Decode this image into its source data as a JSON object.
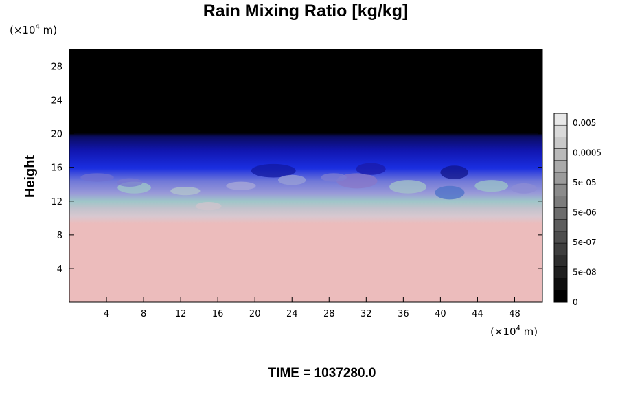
{
  "chart_data": {
    "type": "heatmap",
    "title": "Rain Mixing Ratio [kg/kg]",
    "ylabel": "Height",
    "xunit": "(×10",
    "xunit_exp": "4",
    "xunit_tail": " m)",
    "yunit": "(×10",
    "yunit_exp": "4",
    "yunit_tail": " m)",
    "xlim": [
      0,
      51
    ],
    "ylim": [
      0,
      30
    ],
    "xticks": [
      4,
      8,
      12,
      16,
      20,
      24,
      28,
      32,
      36,
      40,
      44,
      48
    ],
    "yticks": [
      4,
      8,
      12,
      16,
      20,
      24,
      28
    ],
    "layers": [
      {
        "name": "near-zero top",
        "y_from": 19.8,
        "y_to": 30,
        "color": "#000000"
      },
      {
        "name": "dark blue band",
        "y_from": 16,
        "y_to": 19.8,
        "color": "#1620c8"
      },
      {
        "name": "mixed band",
        "y_from": 12,
        "y_to": 16,
        "color": "#8c9ad6"
      },
      {
        "name": "lower saturated",
        "y_from": 0,
        "y_to": 11,
        "color": "#ecbcbc"
      }
    ],
    "colorbar": {
      "labels": [
        "0.005",
        "0.0005",
        "5e-05",
        "5e-06",
        "5e-07",
        "5e-08",
        "0"
      ],
      "levels": 16,
      "min_color": "#000000",
      "max_color": "#ffffff"
    }
  },
  "footer": {
    "time_label": "TIME = 1037280.0"
  }
}
